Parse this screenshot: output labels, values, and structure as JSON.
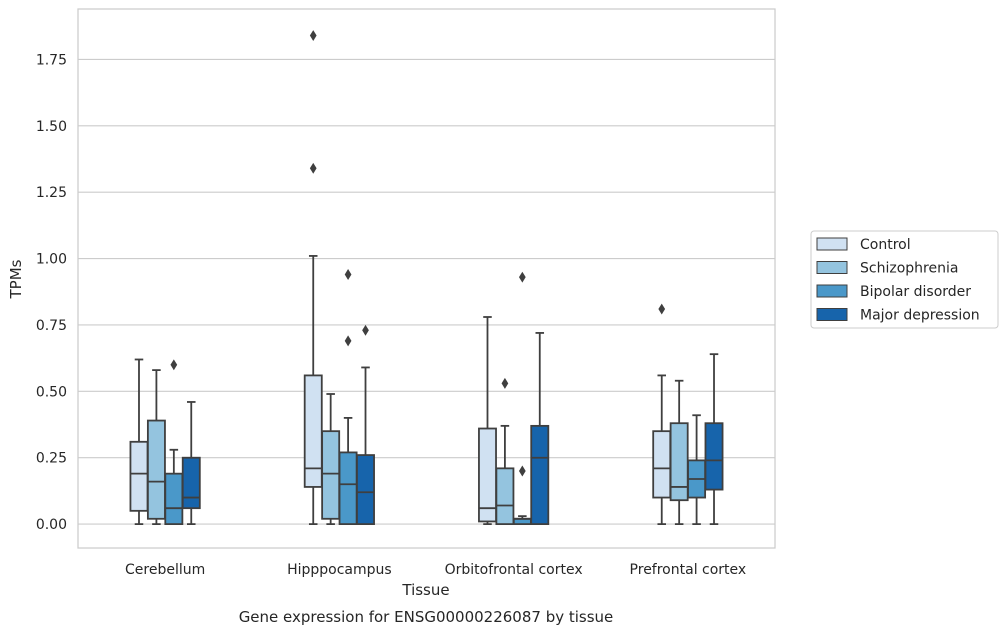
{
  "chart_data": {
    "type": "box",
    "title": "",
    "caption": "Gene expression for ENSG00000226087 by tissue",
    "xlabel": "Tissue",
    "ylabel": "TPMs",
    "ylim": [
      -0.09,
      1.94
    ],
    "yticks": [
      "0.00",
      "0.25",
      "0.50",
      "0.75",
      "1.00",
      "1.25",
      "1.50",
      "1.75"
    ],
    "grid": true,
    "legend_position": "right",
    "categories": [
      "Cerebellum",
      "Hipppocampus",
      "Orbitofrontal cortex",
      "Prefrontal cortex"
    ],
    "series": [
      {
        "name": "Control",
        "color": "#d0e1f2",
        "boxes": [
          {
            "whislo": 0.0,
            "q1": 0.05,
            "med": 0.19,
            "q3": 0.31,
            "whishi": 0.62,
            "fliers": []
          },
          {
            "whislo": 0.0,
            "q1": 0.14,
            "med": 0.21,
            "q3": 0.56,
            "whishi": 1.01,
            "fliers": [
              1.34,
              1.84
            ]
          },
          {
            "whislo": 0.0,
            "q1": 0.01,
            "med": 0.06,
            "q3": 0.36,
            "whishi": 0.78,
            "fliers": []
          },
          {
            "whislo": 0.0,
            "q1": 0.1,
            "med": 0.21,
            "q3": 0.35,
            "whishi": 0.56,
            "fliers": [
              0.81
            ]
          }
        ]
      },
      {
        "name": "Schizophrenia",
        "color": "#94c4df",
        "boxes": [
          {
            "whislo": 0.0,
            "q1": 0.02,
            "med": 0.16,
            "q3": 0.39,
            "whishi": 0.58,
            "fliers": []
          },
          {
            "whislo": 0.0,
            "q1": 0.02,
            "med": 0.19,
            "q3": 0.35,
            "whishi": 0.49,
            "fliers": []
          },
          {
            "whislo": 0.0,
            "q1": 0.0,
            "med": 0.07,
            "q3": 0.21,
            "whishi": 0.37,
            "fliers": [
              0.53
            ]
          },
          {
            "whislo": 0.0,
            "q1": 0.09,
            "med": 0.14,
            "q3": 0.38,
            "whishi": 0.54,
            "fliers": []
          }
        ]
      },
      {
        "name": "Bipolar disorder",
        "color": "#4a98c9",
        "boxes": [
          {
            "whislo": 0.0,
            "q1": 0.0,
            "med": 0.06,
            "q3": 0.19,
            "whishi": 0.28,
            "fliers": [
              0.6
            ]
          },
          {
            "whislo": 0.0,
            "q1": 0.0,
            "med": 0.15,
            "q3": 0.27,
            "whishi": 0.4,
            "fliers": [
              0.69,
              0.94
            ]
          },
          {
            "whislo": 0.0,
            "q1": 0.0,
            "med": 0.02,
            "q3": 0.02,
            "whishi": 0.03,
            "fliers": [
              0.2,
              0.93
            ]
          },
          {
            "whislo": 0.0,
            "q1": 0.1,
            "med": 0.17,
            "q3": 0.24,
            "whishi": 0.41,
            "fliers": []
          }
        ]
      },
      {
        "name": "Major depression",
        "color": "#1764ab",
        "boxes": [
          {
            "whislo": 0.0,
            "q1": 0.06,
            "med": 0.1,
            "q3": 0.25,
            "whishi": 0.46,
            "fliers": []
          },
          {
            "whislo": 0.0,
            "q1": 0.0,
            "med": 0.12,
            "q3": 0.26,
            "whishi": 0.59,
            "fliers": [
              0.73
            ]
          },
          {
            "whislo": 0.0,
            "q1": 0.0,
            "med": 0.25,
            "q3": 0.37,
            "whishi": 0.72,
            "fliers": []
          },
          {
            "whislo": 0.0,
            "q1": 0.13,
            "med": 0.24,
            "q3": 0.38,
            "whishi": 0.64,
            "fliers": []
          }
        ]
      }
    ]
  }
}
